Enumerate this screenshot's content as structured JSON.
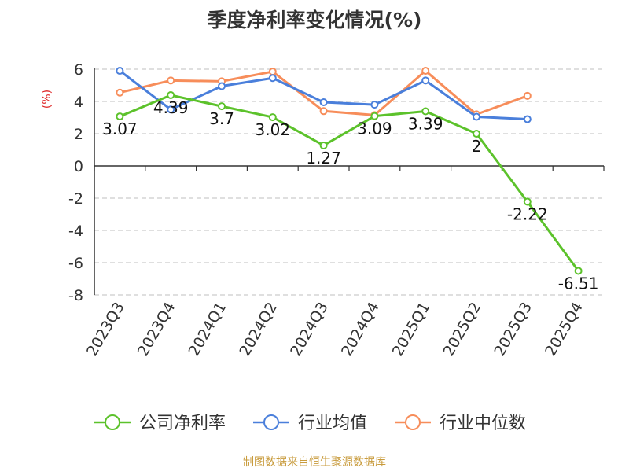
{
  "chart_data": {
    "type": "line",
    "title": "季度净利率变化情况(%)",
    "ylabel": "(%)",
    "xlabel": "",
    "categories": [
      "2023Q3",
      "2023Q4",
      "2024Q1",
      "2024Q2",
      "2024Q3",
      "2024Q4",
      "2025Q1",
      "2025Q2",
      "2025Q3",
      "2025Q4"
    ],
    "ylim": [
      -8,
      6
    ],
    "yticks": [
      6,
      4,
      2,
      0,
      -2,
      -4,
      -6,
      -8
    ],
    "grid": true,
    "legend_position": "bottom",
    "series": [
      {
        "name": "公司净利率",
        "color": "#5cc22b",
        "values": [
          3.07,
          4.39,
          3.7,
          3.02,
          1.27,
          3.09,
          3.39,
          2,
          -2.22,
          -6.51
        ],
        "labels": [
          "3.07",
          "4.39",
          "3.7",
          "3.02",
          "1.27",
          "3.09",
          "3.39",
          "2",
          "-2.22",
          "-6.51"
        ]
      },
      {
        "name": "行业均值",
        "color": "#4a7fdb",
        "values": [
          5.9,
          3.5,
          4.95,
          5.45,
          3.95,
          3.8,
          5.3,
          3.05,
          2.9,
          null
        ]
      },
      {
        "name": "行业中位数",
        "color": "#f78d5a",
        "values": [
          4.55,
          5.3,
          5.25,
          5.85,
          3.4,
          3.15,
          5.9,
          3.2,
          4.35,
          null
        ]
      }
    ],
    "source": "制图数据来自恒生聚源数据库"
  }
}
